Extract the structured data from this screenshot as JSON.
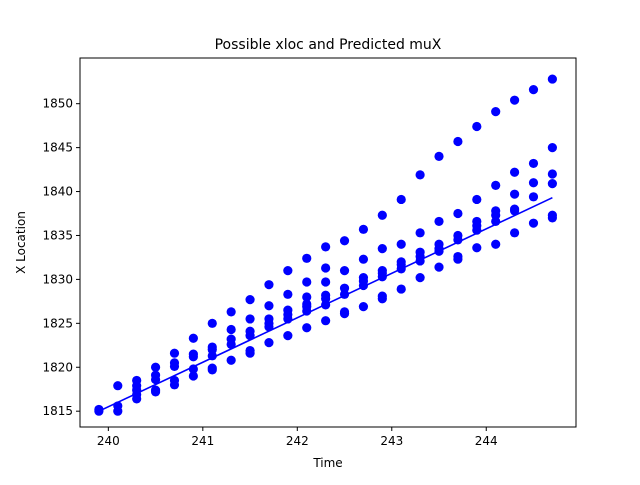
{
  "chart_data": {
    "type": "scatter",
    "title": "Possible xloc and Predicted muX",
    "xlabel": "Time",
    "ylabel": "X Location",
    "xlim": [
      239.7,
      244.95
    ],
    "ylim": [
      1813.2,
      1855.2
    ],
    "xticks": [
      240,
      241,
      242,
      243,
      244
    ],
    "yticks": [
      1815,
      1820,
      1825,
      1830,
      1835,
      1840,
      1845,
      1850
    ],
    "grid": false,
    "color": "#0000ff",
    "series": [
      {
        "kind": "points",
        "points": [
          [
            239.9,
            1815.0
          ],
          [
            239.9,
            1815.2
          ],
          [
            240.1,
            1815.0
          ],
          [
            240.1,
            1815.6
          ],
          [
            240.1,
            1817.9
          ],
          [
            240.3,
            1816.4
          ],
          [
            240.3,
            1816.9
          ],
          [
            240.3,
            1817.4
          ],
          [
            240.3,
            1817.9
          ],
          [
            240.3,
            1818.5
          ],
          [
            240.5,
            1817.2
          ],
          [
            240.5,
            1817.4
          ],
          [
            240.5,
            1818.6
          ],
          [
            240.5,
            1819.1
          ],
          [
            240.5,
            1820.0
          ],
          [
            240.7,
            1818.0
          ],
          [
            240.7,
            1818.5
          ],
          [
            240.7,
            1820.1
          ],
          [
            240.7,
            1820.5
          ],
          [
            240.7,
            1821.6
          ],
          [
            240.9,
            1819.0
          ],
          [
            240.9,
            1819.8
          ],
          [
            240.9,
            1821.2
          ],
          [
            240.9,
            1821.5
          ],
          [
            240.9,
            1823.3
          ],
          [
            241.1,
            1819.7
          ],
          [
            241.1,
            1819.9
          ],
          [
            241.1,
            1821.3
          ],
          [
            241.1,
            1822.0
          ],
          [
            241.1,
            1822.3
          ],
          [
            241.1,
            1825.0
          ],
          [
            241.3,
            1820.8
          ],
          [
            241.3,
            1822.6
          ],
          [
            241.3,
            1823.2
          ],
          [
            241.3,
            1824.3
          ],
          [
            241.3,
            1826.3
          ],
          [
            241.5,
            1821.6
          ],
          [
            241.5,
            1821.9
          ],
          [
            241.5,
            1823.6
          ],
          [
            241.5,
            1824.1
          ],
          [
            241.5,
            1825.5
          ],
          [
            241.5,
            1827.7
          ],
          [
            241.7,
            1822.8
          ],
          [
            241.7,
            1824.6
          ],
          [
            241.7,
            1825.0
          ],
          [
            241.7,
            1825.5
          ],
          [
            241.7,
            1827.0
          ],
          [
            241.7,
            1829.4
          ],
          [
            241.9,
            1823.6
          ],
          [
            241.9,
            1825.5
          ],
          [
            241.9,
            1826.0
          ],
          [
            241.9,
            1826.5
          ],
          [
            241.9,
            1828.3
          ],
          [
            241.9,
            1831.0
          ],
          [
            242.1,
            1824.5
          ],
          [
            242.1,
            1826.4
          ],
          [
            242.1,
            1826.9
          ],
          [
            242.1,
            1827.2
          ],
          [
            242.1,
            1828.0
          ],
          [
            242.1,
            1829.7
          ],
          [
            242.1,
            1832.4
          ],
          [
            242.3,
            1825.3
          ],
          [
            242.3,
            1827.1
          ],
          [
            242.3,
            1827.8
          ],
          [
            242.3,
            1828.2
          ],
          [
            242.3,
            1829.7
          ],
          [
            242.3,
            1831.3
          ],
          [
            242.3,
            1833.7
          ],
          [
            242.5,
            1826.1
          ],
          [
            242.5,
            1826.3
          ],
          [
            242.5,
            1828.3
          ],
          [
            242.5,
            1829.0
          ],
          [
            242.5,
            1831.0
          ],
          [
            242.5,
            1834.4
          ],
          [
            242.7,
            1826.9
          ],
          [
            242.7,
            1829.3
          ],
          [
            242.7,
            1829.8
          ],
          [
            242.7,
            1830.2
          ],
          [
            242.7,
            1832.3
          ],
          [
            242.7,
            1835.7
          ],
          [
            242.9,
            1827.8
          ],
          [
            242.9,
            1828.1
          ],
          [
            242.9,
            1830.3
          ],
          [
            242.9,
            1830.7
          ],
          [
            242.9,
            1831.0
          ],
          [
            242.9,
            1833.5
          ],
          [
            242.9,
            1837.3
          ],
          [
            243.1,
            1828.9
          ],
          [
            243.1,
            1831.2
          ],
          [
            243.1,
            1831.7
          ],
          [
            243.1,
            1832.0
          ],
          [
            243.1,
            1834.0
          ],
          [
            243.1,
            1839.1
          ],
          [
            243.3,
            1830.2
          ],
          [
            243.3,
            1832.1
          ],
          [
            243.3,
            1832.6
          ],
          [
            243.3,
            1833.1
          ],
          [
            243.3,
            1835.3
          ],
          [
            243.3,
            1841.9
          ],
          [
            243.5,
            1831.4
          ],
          [
            243.5,
            1833.2
          ],
          [
            243.5,
            1833.5
          ],
          [
            243.5,
            1834.0
          ],
          [
            243.5,
            1836.6
          ],
          [
            243.5,
            1844.0
          ],
          [
            243.7,
            1832.3
          ],
          [
            243.7,
            1832.6
          ],
          [
            243.7,
            1834.5
          ],
          [
            243.7,
            1835.0
          ],
          [
            243.7,
            1837.5
          ],
          [
            243.7,
            1845.7
          ],
          [
            243.9,
            1833.6
          ],
          [
            243.9,
            1835.6
          ],
          [
            243.9,
            1836.1
          ],
          [
            243.9,
            1836.6
          ],
          [
            243.9,
            1839.1
          ],
          [
            243.9,
            1847.4
          ],
          [
            244.1,
            1834.0
          ],
          [
            244.1,
            1836.6
          ],
          [
            244.1,
            1837.3
          ],
          [
            244.1,
            1837.8
          ],
          [
            244.1,
            1840.7
          ],
          [
            244.1,
            1849.1
          ],
          [
            244.3,
            1835.3
          ],
          [
            244.3,
            1837.8
          ],
          [
            244.3,
            1838.0
          ],
          [
            244.3,
            1839.7
          ],
          [
            244.3,
            1842.2
          ],
          [
            244.3,
            1850.4
          ],
          [
            244.5,
            1836.4
          ],
          [
            244.5,
            1839.4
          ],
          [
            244.5,
            1841.0
          ],
          [
            244.5,
            1843.2
          ],
          [
            244.5,
            1851.6
          ],
          [
            244.7,
            1837.0
          ],
          [
            244.7,
            1837.3
          ],
          [
            244.7,
            1840.9
          ],
          [
            244.7,
            1842.0
          ],
          [
            244.7,
            1845.0
          ],
          [
            244.7,
            1852.8
          ]
        ]
      },
      {
        "kind": "line",
        "x": [
          239.9,
          244.7
        ],
        "y": [
          1815.0,
          1839.3
        ]
      }
    ]
  }
}
